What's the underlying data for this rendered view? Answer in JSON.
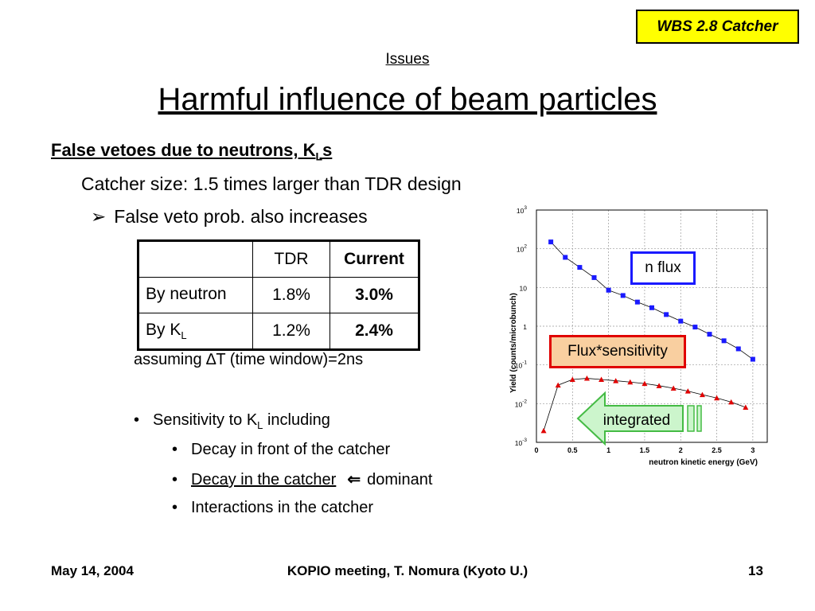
{
  "badge": "WBS 2.8 Catcher",
  "subtitle": "Issues",
  "title": "Harmful influence of beam particles",
  "heading": {
    "text": "False vetoes due to neutrons, K",
    "sub": "L",
    "tail": "s"
  },
  "line1": "Catcher size: 1.5 times larger than TDR design",
  "line2": {
    "arrow": "➢",
    "text": "False veto prob. also increases"
  },
  "table": {
    "header": [
      "",
      "TDR",
      "Current"
    ],
    "rows": [
      {
        "label": "By neutron",
        "label_sub": "",
        "tdr": "1.8%",
        "current": "3.0%"
      },
      {
        "label": "By K",
        "label_sub": "L",
        "tdr": "1.2%",
        "current": "2.4%"
      }
    ]
  },
  "assumption": "assuming ∆T (time window)=2ns",
  "bullets": {
    "b1": {
      "dot": "•",
      "text": "Sensitivity to K",
      "sub": "L",
      "tail": " including"
    },
    "b2": {
      "dot": "•",
      "text": "Decay in front of the catcher"
    },
    "b3": {
      "dot": "•",
      "text": "Decay in the catcher",
      "arrow": "⇐",
      "tail": "dominant"
    },
    "b4": {
      "dot": "•",
      "text": "Interactions in the catcher"
    }
  },
  "annotations": {
    "n_flux": "n flux",
    "flux_sensitivity": "Flux*sensitivity",
    "integrated": "integrated"
  },
  "footer": {
    "date": "May 14, 2004",
    "meeting": "KOPIO meeting, T. Nomura (Kyoto U.)",
    "page": "13"
  },
  "chart_data": {
    "type": "line",
    "xlabel": "neutron kinetic energy (GeV)",
    "ylabel": "Yield (counts/microbunch)",
    "xlim": [
      0,
      3.2
    ],
    "ylim_log10": [
      -3,
      3
    ],
    "log_y": true,
    "x_ticks": [
      "0",
      "0.5",
      "1",
      "1.5",
      "2",
      "2.5",
      "3"
    ],
    "y_ticks": [
      {
        "base": "10",
        "exp": "-3"
      },
      {
        "base": "10",
        "exp": "-2"
      },
      {
        "base": "10",
        "exp": "-1"
      },
      {
        "base": "1",
        "exp": ""
      },
      {
        "base": "10",
        "exp": ""
      },
      {
        "base": "10",
        "exp": "2"
      },
      {
        "base": "10",
        "exp": "3"
      }
    ],
    "grid": true,
    "series": [
      {
        "color": "#1a1aff",
        "marker": "square",
        "x": [
          0.2,
          0.4,
          0.6,
          0.8,
          1.0,
          1.2,
          1.4,
          1.6,
          1.8,
          2.0,
          2.2,
          2.4,
          2.6,
          2.8,
          3.0
        ],
        "y": [
          150,
          60,
          33,
          18,
          8.5,
          6.2,
          4.2,
          3.0,
          2.0,
          1.35,
          0.95,
          0.62,
          0.42,
          0.26,
          0.14
        ]
      },
      {
        "color": "#e00000",
        "marker": "triangle",
        "x": [
          0.1,
          0.3,
          0.5,
          0.7,
          0.9,
          1.1,
          1.3,
          1.5,
          1.7,
          1.9,
          2.1,
          2.3,
          2.5,
          2.7,
          2.9
        ],
        "y": [
          0.002,
          0.03,
          0.042,
          0.045,
          0.042,
          0.039,
          0.036,
          0.033,
          0.029,
          0.025,
          0.021,
          0.017,
          0.014,
          0.011,
          0.008
        ]
      }
    ]
  }
}
